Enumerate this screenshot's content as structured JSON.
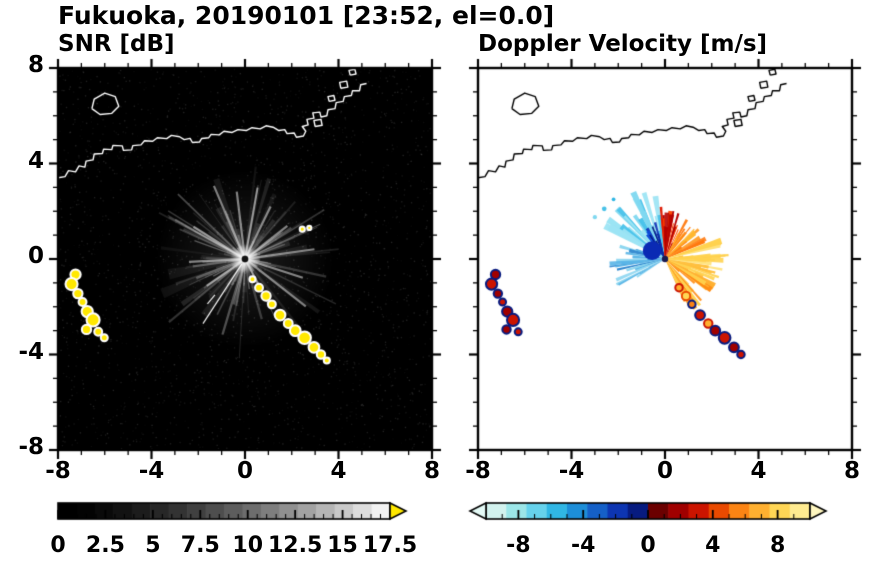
{
  "title": "Fukuoka, 20190101 [23:52, el=0.0]",
  "coastline": {
    "lines": [
      [
        [
          -8.0,
          3.4
        ],
        [
          -7.7,
          3.45
        ],
        [
          -7.55,
          3.7
        ],
        [
          -7.25,
          3.65
        ],
        [
          -7.1,
          3.9
        ],
        [
          -6.85,
          3.85
        ],
        [
          -6.8,
          4.1
        ],
        [
          -6.5,
          4.15
        ],
        [
          -6.45,
          4.4
        ],
        [
          -6.1,
          4.42
        ],
        [
          -6.05,
          4.6
        ],
        [
          -5.7,
          4.58
        ],
        [
          -5.65,
          4.76
        ],
        [
          -5.25,
          4.74
        ],
        [
          -5.2,
          4.55
        ],
        [
          -4.85,
          4.57
        ],
        [
          -4.8,
          4.75
        ],
        [
          -4.45,
          4.78
        ],
        [
          -4.3,
          4.95
        ],
        [
          -3.95,
          4.93
        ],
        [
          -3.75,
          5.08
        ],
        [
          -3.35,
          5.04
        ],
        [
          -3.15,
          5.18
        ],
        [
          -2.8,
          5.12
        ],
        [
          -2.6,
          5.0
        ],
        [
          -2.35,
          5.05
        ],
        [
          -2.25,
          4.88
        ],
        [
          -1.95,
          4.9
        ],
        [
          -1.85,
          5.05
        ],
        [
          -1.55,
          5.08
        ],
        [
          -1.45,
          5.22
        ],
        [
          -1.1,
          5.2
        ],
        [
          -0.9,
          5.35
        ],
        [
          -0.55,
          5.3
        ],
        [
          -0.3,
          5.42
        ],
        [
          0.05,
          5.38
        ],
        [
          0.3,
          5.5
        ],
        [
          0.65,
          5.45
        ],
        [
          0.9,
          5.58
        ],
        [
          1.2,
          5.52
        ],
        [
          1.45,
          5.38
        ],
        [
          1.7,
          5.42
        ],
        [
          1.8,
          5.25
        ],
        [
          2.1,
          5.28
        ],
        [
          2.2,
          5.1
        ],
        [
          2.5,
          5.15
        ],
        [
          2.6,
          5.35
        ],
        [
          2.45,
          5.55
        ],
        [
          2.7,
          5.62
        ],
        [
          2.65,
          5.85
        ],
        [
          2.95,
          5.9
        ],
        [
          2.9,
          6.12
        ],
        [
          3.2,
          6.15
        ],
        [
          3.25,
          5.95
        ],
        [
          3.5,
          6.0
        ],
        [
          3.55,
          6.25
        ],
        [
          3.85,
          6.3
        ],
        [
          3.9,
          6.55
        ],
        [
          4.2,
          6.6
        ],
        [
          4.25,
          6.8
        ],
        [
          4.55,
          6.85
        ],
        [
          4.6,
          7.05
        ],
        [
          4.9,
          7.05
        ],
        [
          4.95,
          7.3
        ],
        [
          5.2,
          7.35
        ]
      ],
      [
        [
          -6.55,
          6.3
        ],
        [
          -6.2,
          6.05
        ],
        [
          -5.7,
          6.1
        ],
        [
          -5.4,
          6.4
        ],
        [
          -5.55,
          6.8
        ],
        [
          -6.0,
          6.95
        ],
        [
          -6.45,
          6.7
        ],
        [
          -6.55,
          6.3
        ]
      ],
      [
        [
          3.0,
          5.55
        ],
        [
          3.3,
          5.6
        ],
        [
          3.25,
          5.85
        ],
        [
          2.95,
          5.8
        ],
        [
          3.0,
          5.55
        ]
      ],
      [
        [
          4.1,
          7.15
        ],
        [
          4.4,
          7.2
        ],
        [
          4.35,
          7.45
        ],
        [
          4.05,
          7.4
        ],
        [
          4.1,
          7.15
        ]
      ],
      [
        [
          3.6,
          6.6
        ],
        [
          3.85,
          6.65
        ],
        [
          3.8,
          6.85
        ],
        [
          3.55,
          6.8
        ],
        [
          3.6,
          6.6
        ]
      ],
      [
        [
          4.5,
          7.7
        ],
        [
          4.75,
          7.75
        ],
        [
          4.7,
          7.95
        ],
        [
          4.45,
          7.9
        ],
        [
          4.5,
          7.7
        ]
      ]
    ]
  },
  "chart_data": [
    {
      "type": "heatmap",
      "title": "SNR [dB]",
      "xlim": [
        -8,
        8
      ],
      "ylim": [
        -8,
        8
      ],
      "xtick_values": [
        -8,
        -4,
        0,
        4,
        8
      ],
      "xtick_labels": [
        "-8",
        "-4",
        "0",
        "4",
        "8"
      ],
      "ytick_values": [
        8,
        4,
        0,
        -4,
        -8
      ],
      "ytick_labels": [
        "8",
        "4",
        "0",
        "-4",
        "-8"
      ],
      "minor_tick_step": 1,
      "background": "#000000",
      "coast_color": "#ffffff",
      "radar_center": [
        0,
        0
      ],
      "center_glow": true,
      "center_dot": "#101010",
      "noise": {
        "count": 2400,
        "seed": 13
      },
      "halo_wedges": {
        "count": 36,
        "seed": 12,
        "rmax": 4.0,
        "color": "#ffffff"
      },
      "spokes": {
        "count": 120,
        "seed": 11,
        "min_r": 0.5,
        "max_r": 4.4,
        "color": "#dcdcdc"
      },
      "bright_streaks": [
        {
          "angle": 113,
          "r": 3.4
        },
        {
          "angle": 97,
          "r": 2.9
        },
        {
          "angle": 80,
          "r": 3.1
        },
        {
          "angle": 64,
          "r": 2.5
        },
        {
          "angle": 38,
          "r": 2.3
        },
        {
          "angle": 8,
          "r": 3.0
        },
        {
          "angle": -18,
          "r": 2.6
        },
        {
          "angle": -38,
          "r": 3.3
        },
        {
          "angle": -62,
          "r": 2.2
        },
        {
          "angle": 148,
          "r": 2.6
        },
        {
          "angle": 183,
          "r": 2.4
        },
        {
          "angle": 215,
          "r": 2.0
        }
      ],
      "rays_white": [
        {
          "angle": 237,
          "r0": 0.25,
          "r1": 3.3
        },
        {
          "angle": 230,
          "r0": 2.0,
          "r1": 2.5
        }
      ],
      "echo_fill": "#ffe800",
      "echo_edge": "#ffffff",
      "echoes": [
        {
          "x": -7.25,
          "y": -0.65,
          "r": 0.22
        },
        {
          "x": -7.42,
          "y": -1.05,
          "r": 0.26
        },
        {
          "x": -7.15,
          "y": -1.45,
          "r": 0.2
        },
        {
          "x": -6.95,
          "y": -1.8,
          "r": 0.17
        },
        {
          "x": -6.75,
          "y": -2.2,
          "r": 0.24
        },
        {
          "x": -6.5,
          "y": -2.55,
          "r": 0.28
        },
        {
          "x": -6.78,
          "y": -2.95,
          "r": 0.2
        },
        {
          "x": -6.28,
          "y": -3.05,
          "r": 0.17
        },
        {
          "x": -6.02,
          "y": -3.3,
          "r": 0.15
        },
        {
          "x": 0.32,
          "y": -0.85,
          "r": 0.13
        },
        {
          "x": 0.6,
          "y": -1.2,
          "r": 0.17
        },
        {
          "x": 0.9,
          "y": -1.55,
          "r": 0.2
        },
        {
          "x": 1.15,
          "y": -1.9,
          "r": 0.17
        },
        {
          "x": 1.5,
          "y": -2.35,
          "r": 0.23
        },
        {
          "x": 1.85,
          "y": -2.7,
          "r": 0.19
        },
        {
          "x": 2.15,
          "y": -3.0,
          "r": 0.23
        },
        {
          "x": 2.55,
          "y": -3.3,
          "r": 0.27
        },
        {
          "x": 2.95,
          "y": -3.7,
          "r": 0.23
        },
        {
          "x": 3.25,
          "y": -4.0,
          "r": 0.18
        },
        {
          "x": 3.5,
          "y": -4.25,
          "r": 0.13
        },
        {
          "x": 2.45,
          "y": 1.25,
          "r": 0.11
        },
        {
          "x": 2.75,
          "y": 1.3,
          "r": 0.09
        }
      ],
      "colorbar": {
        "vmin": 0,
        "vmax": 17.5,
        "minor": 0.5,
        "major": 2.5,
        "scheme": "grayscale",
        "steps": 18,
        "right_arrow": "#ffe800",
        "tick_values": [
          0,
          2.5,
          5,
          7.5,
          10,
          12.5,
          15,
          17.5
        ],
        "tick_labels": [
          "0",
          "2.5",
          "5",
          "7.5",
          "10",
          "12.5",
          "15",
          "17.5"
        ]
      }
    },
    {
      "type": "heatmap",
      "title": "Doppler Velocity [m/s]",
      "xlim": [
        -8,
        8
      ],
      "ylim": [
        -8,
        8
      ],
      "xtick_values": [
        -8,
        -4,
        0,
        4,
        8
      ],
      "xtick_labels": [
        "-8",
        "-4",
        "0",
        "4",
        "8"
      ],
      "ytick_values": [
        8,
        4,
        0,
        -4,
        -8
      ],
      "ytick_labels": [],
      "minor_tick_step": 1,
      "background": "#ffffff",
      "coast_color": "#000000",
      "radar_center": [
        0,
        0
      ],
      "center_dot": "#1a1a50",
      "wedge_groups": [
        {
          "name": "nw-cyan",
          "a0": 96,
          "a1": 152,
          "rmax": 3.3,
          "colors": [
            "#7fd8f0",
            "#49c2ea",
            "#9be4f4"
          ],
          "count": 30,
          "seed": 31
        },
        {
          "name": "nnw-darkblue",
          "a0": 98,
          "a1": 132,
          "rmax": 1.7,
          "colors": [
            "#0a2ab4",
            "#0c49d8",
            "#061a7e"
          ],
          "count": 18,
          "seed": 32
        },
        {
          "name": "n-red",
          "a0": 63,
          "a1": 96,
          "rmax": 2.3,
          "colors": [
            "#e01800",
            "#ff4400",
            "#b40000"
          ],
          "count": 20,
          "seed": 33
        },
        {
          "name": "ne-orange",
          "a0": 20,
          "a1": 62,
          "rmax": 2.0,
          "colors": [
            "#ff9a20",
            "#ffb830",
            "#ff7a10"
          ],
          "count": 22,
          "seed": 34
        },
        {
          "name": "e-yellow",
          "a0": -25,
          "a1": 20,
          "rmax": 2.6,
          "colors": [
            "#ffd24e",
            "#ffe27a",
            "#ffbe3a"
          ],
          "count": 26,
          "seed": 35
        },
        {
          "name": "e-pale-ray",
          "a0": -3,
          "a1": 6,
          "rmax": 3.0,
          "colors": [
            "#ffe27a",
            "#ffd24e"
          ],
          "count": 6,
          "seed": 38
        },
        {
          "name": "se-orange",
          "a0": -70,
          "a1": -25,
          "rmax": 2.5,
          "colors": [
            "#ffb030",
            "#ff8c14",
            "#ffd24e"
          ],
          "count": 24,
          "seed": 36
        },
        {
          "name": "w-blue",
          "a0": 160,
          "a1": 214,
          "rmax": 2.4,
          "colors": [
            "#58b4e6",
            "#8cd6f0",
            "#2f86cf"
          ],
          "count": 26,
          "seed": 37
        }
      ],
      "echo_fill": "#a00000",
      "echo_edge": "#071b80",
      "echoes": [
        {
          "x": -7.25,
          "y": -0.65,
          "r": 0.2,
          "fill": "#a00000"
        },
        {
          "x": -7.42,
          "y": -1.05,
          "r": 0.24,
          "fill": "#cc1400"
        },
        {
          "x": -7.15,
          "y": -1.45,
          "r": 0.18,
          "fill": "#a00000"
        },
        {
          "x": -6.95,
          "y": -1.8,
          "r": 0.15,
          "fill": "#cc1400"
        },
        {
          "x": -6.75,
          "y": -2.2,
          "r": 0.22,
          "fill": "#a00000"
        },
        {
          "x": -6.5,
          "y": -2.55,
          "r": 0.26,
          "fill": "#cc1400"
        },
        {
          "x": -6.78,
          "y": -2.95,
          "r": 0.18,
          "fill": "#a00000"
        },
        {
          "x": -6.28,
          "y": -3.05,
          "r": 0.15,
          "fill": "#cc1400"
        },
        {
          "x": 0.6,
          "y": -1.2,
          "r": 0.16,
          "fill": "#ffb030",
          "edge": "#cc1400"
        },
        {
          "x": 0.9,
          "y": -1.55,
          "r": 0.18,
          "fill": "#ffd655",
          "edge": "#ea4a00"
        },
        {
          "x": 1.15,
          "y": -1.9,
          "r": 0.16,
          "fill": "#fb8414",
          "edge": "#071b80"
        },
        {
          "x": 1.5,
          "y": -2.35,
          "r": 0.21,
          "fill": "#cc1400",
          "edge": "#071b80"
        },
        {
          "x": 1.85,
          "y": -2.7,
          "r": 0.18,
          "fill": "#ffb030",
          "edge": "#cc1400"
        },
        {
          "x": 2.15,
          "y": -3.0,
          "r": 0.21,
          "fill": "#a00000",
          "edge": "#071b80"
        },
        {
          "x": 2.55,
          "y": -3.3,
          "r": 0.25,
          "fill": "#cc1400",
          "edge": "#071b80"
        },
        {
          "x": 2.95,
          "y": -3.7,
          "r": 0.21,
          "fill": "#a00000",
          "edge": "#071b80"
        },
        {
          "x": 3.25,
          "y": -4.0,
          "r": 0.16,
          "fill": "#cc1400",
          "edge": "#071b80"
        },
        {
          "x": -0.55,
          "y": 0.35,
          "r": 0.4,
          "fill": "#0a2ab4",
          "edge": "none"
        },
        {
          "x": -2.6,
          "y": 2.1,
          "r": 0.1,
          "fill": "#49c2e8",
          "edge": "none"
        },
        {
          "x": -3.0,
          "y": 1.75,
          "r": 0.09,
          "fill": "#7fd8f0",
          "edge": "none"
        },
        {
          "x": -2.2,
          "y": 2.5,
          "r": 0.08,
          "fill": "#30b6e4",
          "edge": "none"
        }
      ],
      "colorbar": {
        "vmin": -10,
        "vmax": 10,
        "minor": 1,
        "major": 4,
        "colors": [
          "#d2f2ee",
          "#9ce6e8",
          "#66d2ec",
          "#30b6e4",
          "#1d8ed8",
          "#1560c8",
          "#0d35b2",
          "#071b80",
          "#6b0000",
          "#a00000",
          "#cc1400",
          "#ea4a00",
          "#fb8414",
          "#ffb030",
          "#ffd655",
          "#ffeb90"
        ],
        "left_arrow": "#e4faf6",
        "right_arrow": "#fff7c0",
        "tick_values": [
          -8,
          -4,
          0,
          4,
          8
        ],
        "tick_labels": [
          "-8",
          "-4",
          "0",
          "4",
          "8"
        ]
      }
    }
  ]
}
